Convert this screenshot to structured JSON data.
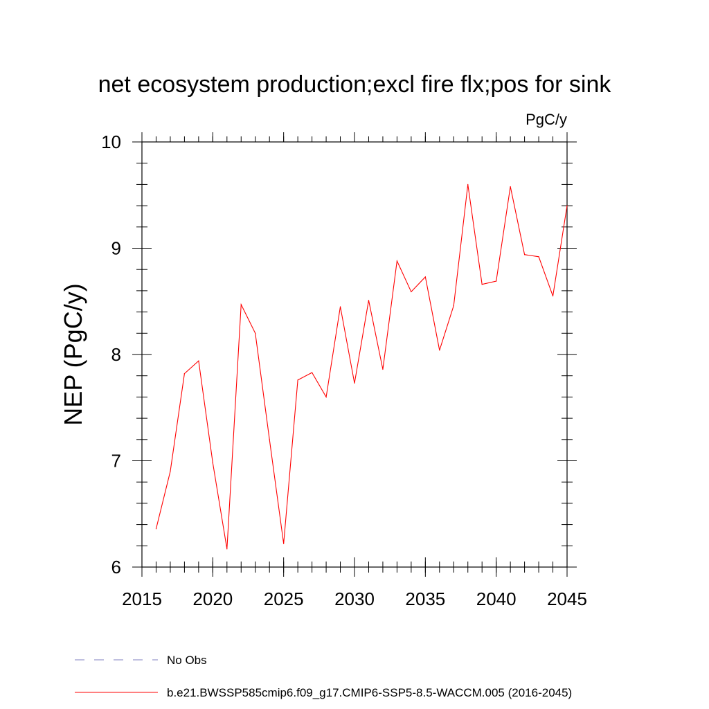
{
  "chart_data": {
    "type": "line",
    "title": "net ecosystem production;excl fire flx;pos for sink",
    "units": "PgC/y",
    "xlabel": "",
    "ylabel": "NEP  (PgC/y)",
    "xlim": [
      2015,
      2045
    ],
    "ylim": [
      6,
      10
    ],
    "x_ticks": [
      2015,
      2020,
      2025,
      2030,
      2035,
      2040,
      2045
    ],
    "y_ticks": [
      6,
      7,
      8,
      9,
      10
    ],
    "x_minor_step": 1,
    "y_minor_step": 0.2,
    "grid": false,
    "legend_position": "bottom-left",
    "series": [
      {
        "name": "b.e21.BWSSP585cmip6.f09_g17.CMIP6-SSP5-8.5-WACCM.005 (2016-2045)",
        "color": "#ff0000",
        "style": "solid",
        "x": [
          2016,
          2017,
          2018,
          2019,
          2020,
          2021,
          2022,
          2023,
          2024,
          2025,
          2026,
          2027,
          2028,
          2029,
          2030,
          2031,
          2032,
          2033,
          2034,
          2035,
          2036,
          2037,
          2038,
          2039,
          2040,
          2041,
          2042,
          2043,
          2044,
          2045
        ],
        "values": [
          6.36,
          6.9,
          7.82,
          7.94,
          6.98,
          6.17,
          8.47,
          8.2,
          7.2,
          6.22,
          7.76,
          7.83,
          7.6,
          8.45,
          7.73,
          8.51,
          7.86,
          8.88,
          8.59,
          8.73,
          8.04,
          8.46,
          9.6,
          8.66,
          8.69,
          9.58,
          8.94,
          8.92,
          8.55,
          9.4
        ]
      },
      {
        "name": "No Obs",
        "color": "#8080c0",
        "style": "dashed",
        "x": [],
        "values": []
      }
    ]
  }
}
